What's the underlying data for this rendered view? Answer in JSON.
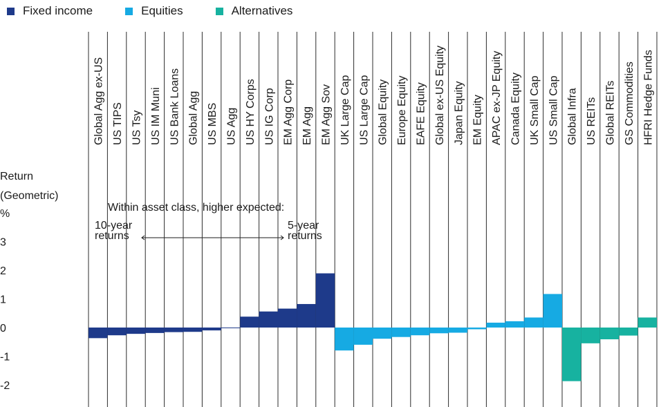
{
  "legend": [
    {
      "label": "Fixed income",
      "color": "#1e3a8a"
    },
    {
      "label": "Equities",
      "color": "#16aae3"
    },
    {
      "label": "Alternatives",
      "color": "#17b2a0"
    }
  ],
  "ylabel_lines": [
    "Return",
    "(Geometric)",
    "%"
  ],
  "annotation": {
    "title": "Within asset class, higher expected:",
    "left_line1": "10-year",
    "left_line2": "returns",
    "right_line1": "5-year",
    "right_line2": "returns"
  },
  "chart_data": {
    "type": "bar",
    "ylabel": "Return (Geometric) %",
    "ylim": [
      -2.5,
      3.5
    ],
    "yticks": [
      3,
      2,
      1,
      0,
      -1,
      -2
    ],
    "grid": false,
    "legend_placement": "top-left",
    "categories": [
      {
        "name": "Global Agg ex-US",
        "value": -0.37,
        "group": "Fixed income"
      },
      {
        "name": "US TIPS",
        "value": -0.27,
        "group": "Fixed income"
      },
      {
        "name": "US Tsy",
        "value": -0.22,
        "group": "Fixed income"
      },
      {
        "name": "US IM Muni",
        "value": -0.19,
        "group": "Fixed income"
      },
      {
        "name": "US Bank Loans",
        "value": -0.16,
        "group": "Fixed income"
      },
      {
        "name": "Global Agg",
        "value": -0.15,
        "group": "Fixed income"
      },
      {
        "name": "US MBS",
        "value": -0.1,
        "group": "Fixed income"
      },
      {
        "name": "US Agg",
        "value": -0.02,
        "group": "Fixed income"
      },
      {
        "name": "US HY Corps",
        "value": 0.38,
        "group": "Fixed income"
      },
      {
        "name": "US IG Corp",
        "value": 0.56,
        "group": "Fixed income"
      },
      {
        "name": "EM Agg Corp",
        "value": 0.66,
        "group": "Fixed income"
      },
      {
        "name": "EM Agg",
        "value": 0.82,
        "group": "Fixed income"
      },
      {
        "name": "EM Agg Sov",
        "value": 1.89,
        "group": "Fixed income"
      },
      {
        "name": "UK Large Cap",
        "value": -0.8,
        "group": "Equities"
      },
      {
        "name": "US Large Cap",
        "value": -0.6,
        "group": "Equities"
      },
      {
        "name": "Global Equity",
        "value": -0.39,
        "group": "Equities"
      },
      {
        "name": "Europe Equity",
        "value": -0.33,
        "group": "Equities"
      },
      {
        "name": "EAFE Equity",
        "value": -0.27,
        "group": "Equities"
      },
      {
        "name": "Global ex-US Equity",
        "value": -0.2,
        "group": "Equities"
      },
      {
        "name": "Japan Equity",
        "value": -0.18,
        "group": "Equities"
      },
      {
        "name": "EM Equity",
        "value": -0.06,
        "group": "Equities"
      },
      {
        "name": "APAC ex-JP Equity",
        "value": 0.17,
        "group": "Equities"
      },
      {
        "name": "Canada Equity",
        "value": 0.22,
        "group": "Equities"
      },
      {
        "name": "UK Small Cap",
        "value": 0.35,
        "group": "Equities"
      },
      {
        "name": "US Small Cap",
        "value": 1.17,
        "group": "Equities"
      },
      {
        "name": "Global Infra",
        "value": -1.87,
        "group": "Alternatives"
      },
      {
        "name": "US REITs",
        "value": -0.55,
        "group": "Alternatives"
      },
      {
        "name": "Global REITs",
        "value": -0.41,
        "group": "Alternatives"
      },
      {
        "name": "GS Commodities",
        "value": -0.28,
        "group": "Alternatives"
      },
      {
        "name": "HFRI Hedge Funds",
        "value": 0.35,
        "group": "Alternatives"
      }
    ]
  }
}
